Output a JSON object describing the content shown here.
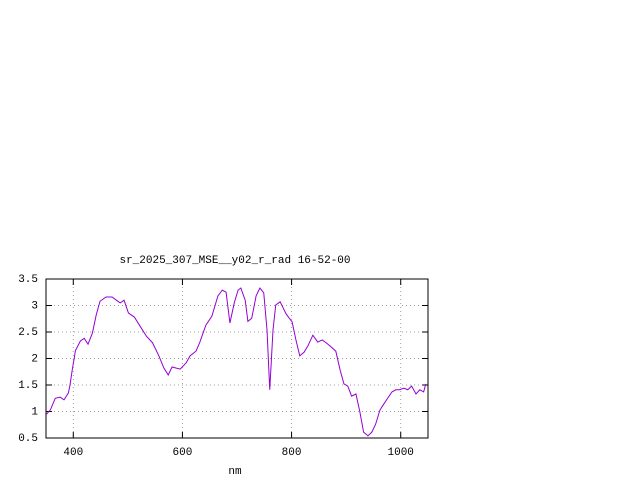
{
  "chart_data": {
    "type": "line",
    "title": "sr_2025_307_MSE__y02_r_rad 16-52-00",
    "x_label": "nm",
    "x": [
      351,
      358,
      367,
      376,
      383,
      391,
      394,
      398,
      404,
      413,
      420,
      427,
      435,
      442,
      449,
      460,
      471,
      479,
      486,
      493,
      501,
      512,
      523,
      534,
      545,
      556,
      566,
      574,
      581,
      588,
      596,
      607,
      614,
      625,
      632,
      643,
      654,
      665,
      673,
      680,
      687,
      695,
      702,
      707,
      715,
      720,
      727,
      735,
      742,
      749,
      755,
      760,
      766,
      771,
      779,
      790,
      801,
      808,
      815,
      823,
      830,
      839,
      848,
      856,
      863,
      870,
      881,
      889,
      896,
      903,
      910,
      918,
      925,
      932,
      940,
      947,
      954,
      962,
      969,
      976,
      984,
      991,
      998,
      1006,
      1013,
      1020,
      1028,
      1035,
      1042,
      1046
    ],
    "series": [
      {
        "name": "sr_2025_307_MSE__y02_r_rad",
        "color": "#9400d3",
        "values": [
          0.95,
          1.03,
          1.25,
          1.27,
          1.22,
          1.35,
          1.5,
          1.78,
          2.15,
          2.33,
          2.38,
          2.27,
          2.48,
          2.82,
          3.08,
          3.16,
          3.16,
          3.1,
          3.05,
          3.1,
          2.86,
          2.78,
          2.6,
          2.42,
          2.3,
          2.07,
          1.82,
          1.69,
          1.84,
          1.82,
          1.8,
          1.92,
          2.05,
          2.14,
          2.31,
          2.63,
          2.8,
          3.18,
          3.29,
          3.25,
          2.67,
          3.05,
          3.29,
          3.33,
          3.1,
          2.7,
          2.76,
          3.18,
          3.33,
          3.24,
          2.54,
          1.41,
          2.54,
          3.01,
          3.07,
          2.84,
          2.69,
          2.35,
          2.05,
          2.12,
          2.24,
          2.44,
          2.31,
          2.35,
          2.3,
          2.24,
          2.14,
          1.78,
          1.52,
          1.48,
          1.29,
          1.33,
          1.0,
          0.61,
          0.54,
          0.61,
          0.76,
          1.03,
          1.14,
          1.25,
          1.37,
          1.41,
          1.41,
          1.44,
          1.41,
          1.48,
          1.33,
          1.41,
          1.37,
          1.52
        ]
      }
    ],
    "xlim": [
      350,
      1050
    ],
    "ylim": [
      0.5,
      3.5
    ],
    "xticks": [
      400,
      600,
      800,
      1000
    ],
    "yticks": [
      0.5,
      1,
      1.5,
      2,
      2.5,
      3,
      3.5
    ],
    "grid": true
  }
}
